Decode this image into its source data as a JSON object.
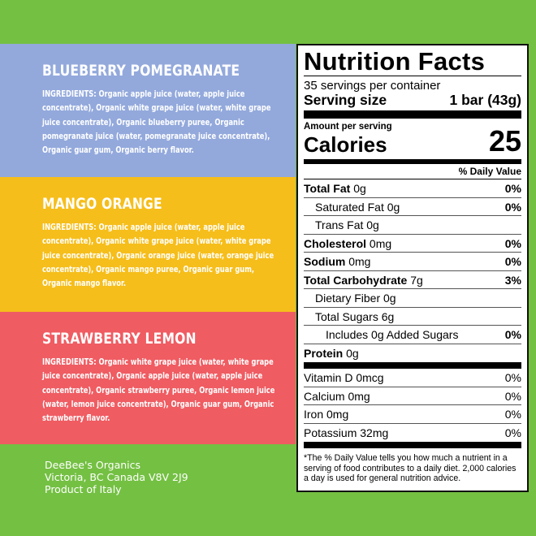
{
  "flavors": [
    {
      "name": "BLUEBERRY POMEGRANATE",
      "ingredients": "INGREDIENTS: Organic apple juice (water, apple juice concentrate), Organic white grape juice (water, white grape juice concentrate), Organic blueberry puree, Organic pomegranate juice (water, pomegranate juice concentrate), Organic guar gum, Organic berry flavor.",
      "color": "#93a9dc"
    },
    {
      "name": "MANGO ORANGE",
      "ingredients": "INGREDIENTS: Organic apple juice (water, apple juice concentrate), Organic white grape juice (water, white grape juice concentrate), Organic orange juice (water, orange juice concentrate), Organic mango puree, Organic guar gum, Organic mango flavor.",
      "color": "#f6be1b"
    },
    {
      "name": "STRAWBERRY LEMON",
      "ingredients": "INGREDIENTS: Organic white grape juice (water, white grape juice concentrate), Organic apple juice (water, apple juice concentrate), Organic strawberry puree, Organic lemon juice (water, lemon juice concentrate), Organic guar gum, Organic strawberry flavor.",
      "color": "#ef5c62"
    }
  ],
  "address": [
    "DeeBee's Organics",
    "Victoria, BC Canada V8V 2J9",
    "Product of Italy"
  ],
  "nutrition": {
    "title": "Nutrition Facts",
    "servings": "35 servings per container",
    "serving_size_label": "Serving size",
    "serving_size": "1 bar (43g)",
    "amount_per_serving": "Amount per serving",
    "calories_label": "Calories",
    "calories": "25",
    "dv_header": "% Daily Value",
    "rows": [
      {
        "label": "Total Fat",
        "amount": "0g",
        "dv": "0%"
      },
      {
        "label": "Saturated Fat 0g",
        "amount": "",
        "dv": "0%"
      },
      {
        "label": "Trans Fat 0g",
        "amount": "",
        "dv": ""
      },
      {
        "label": "Cholesterol",
        "amount": "0mg",
        "dv": "0%"
      },
      {
        "label": "Sodium",
        "amount": "0mg",
        "dv": "0%"
      },
      {
        "label": "Total Carbohydrate",
        "amount": "7g",
        "dv": "3%"
      },
      {
        "label": "Dietary Fiber 0g",
        "amount": "",
        "dv": ""
      },
      {
        "label": "Total Sugars 6g",
        "amount": "",
        "dv": ""
      },
      {
        "label": "Includes 0g Added Sugars",
        "amount": "",
        "dv": "0%"
      },
      {
        "label": "Protein",
        "amount": "0g",
        "dv": ""
      }
    ],
    "vitamins": [
      {
        "label": "Vitamin D 0mcg",
        "dv": "0%"
      },
      {
        "label": "Calcium 0mg",
        "dv": "0%"
      },
      {
        "label": "Iron 0mg",
        "dv": "0%"
      },
      {
        "label": "Potassium 32mg",
        "dv": "0%"
      }
    ],
    "footnote": "*The % Daily Value tells you how much a nutrient in a serving of food contributes to a daily diet. 2,000 calories a day is used for general nutrition advice."
  }
}
